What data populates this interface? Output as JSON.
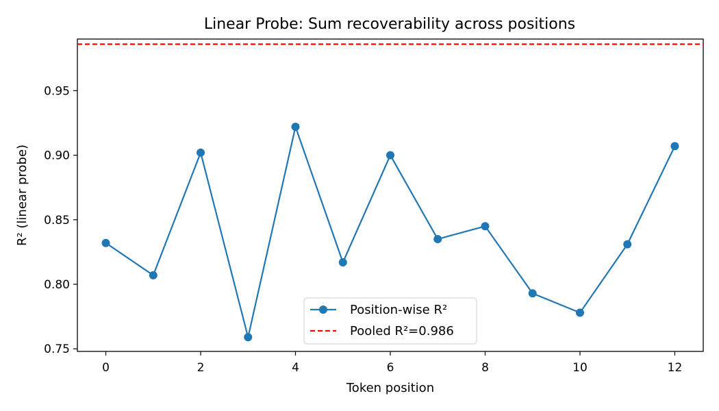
{
  "chart_data": {
    "type": "line",
    "title": "Linear Probe: Sum recoverability across positions",
    "xlabel": "Token position",
    "ylabel": "R² (linear probe)",
    "xlim": [
      -0.6,
      12.6
    ],
    "ylim": [
      0.748,
      0.99
    ],
    "xticks": [
      0,
      2,
      4,
      6,
      8,
      10,
      12
    ],
    "yticks": [
      0.75,
      0.8,
      0.85,
      0.9,
      0.95
    ],
    "ytick_labels": [
      "0.75",
      "0.80",
      "0.85",
      "0.90",
      "0.95"
    ],
    "grid": false,
    "legend_position": "bottom-center",
    "series": [
      {
        "name": "Position-wise R²",
        "color": "#1f77b4",
        "marker": "circle",
        "x": [
          0,
          1,
          2,
          3,
          4,
          5,
          6,
          7,
          8,
          9,
          10,
          11,
          12
        ],
        "y": [
          0.832,
          0.807,
          0.902,
          0.759,
          0.922,
          0.817,
          0.9,
          0.835,
          0.845,
          0.793,
          0.778,
          0.831,
          0.907
        ]
      }
    ],
    "reference_lines": [
      {
        "name": "Pooled R²=0.986",
        "y": 0.986,
        "color": "#ff0000",
        "style": "dashed"
      }
    ]
  }
}
